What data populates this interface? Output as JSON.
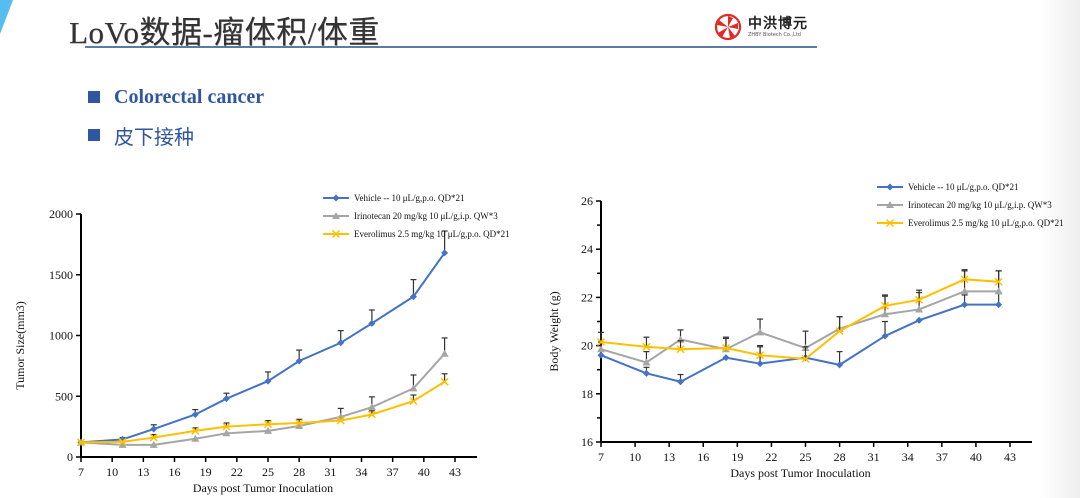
{
  "slide": {
    "title": "LoVo数据-瘤体积/体重",
    "logo": {
      "name_cn": "中洪博元",
      "name_en": "ZHBY Biotech Co.,Ltd"
    },
    "bullets": [
      {
        "text": "Colorectal cancer"
      },
      {
        "text": "皮下接种"
      }
    ],
    "colors": {
      "accent_blue": "#2f56a0",
      "title_rule": "#5a7ba6",
      "corner": "#55bdf0",
      "logo_red": "#e02a26"
    }
  },
  "chart_data": [
    {
      "type": "line",
      "title": "",
      "xlabel": "Days post Tumor Inoculation",
      "ylabel": "Tumor Size(mm3)",
      "xlim": [
        7,
        45
      ],
      "ylim": [
        0,
        2000
      ],
      "xticks": [
        7,
        10,
        13,
        16,
        19,
        22,
        25,
        28,
        31,
        34,
        37,
        40,
        43
      ],
      "yticks": [
        0,
        500,
        1000,
        1500,
        2000
      ],
      "grid": false,
      "legend_position": "top-right",
      "x": [
        7,
        11,
        14,
        18,
        21,
        25,
        28,
        32,
        35,
        39,
        42
      ],
      "series": [
        {
          "name": "Vehicle -- 10 μL/g,p.o. QD*21",
          "color": "#4472c4",
          "marker": "diamond",
          "values": [
            120,
            145,
            230,
            350,
            480,
            625,
            790,
            940,
            1100,
            1320,
            1680
          ],
          "errors": [
            0,
            15,
            35,
            40,
            45,
            75,
            90,
            100,
            110,
            140,
            180
          ]
        },
        {
          "name": "Irinotecan 20 mg/kg 10 μL/g,i.p. QW*3",
          "color": "#a5a5a5",
          "marker": "triangle",
          "values": [
            120,
            100,
            100,
            150,
            195,
            215,
            255,
            330,
            410,
            565,
            850
          ],
          "errors": [
            0,
            0,
            0,
            0,
            0,
            0,
            0,
            70,
            85,
            110,
            130
          ]
        },
        {
          "name": "Everolimus 2.5 mg/kg 10 μL/g,p.o. QD*21",
          "color": "#ffc000",
          "marker": "x",
          "values": [
            120,
            125,
            160,
            215,
            250,
            270,
            280,
            300,
            350,
            460,
            620
          ],
          "errors": [
            0,
            0,
            25,
            25,
            30,
            30,
            30,
            0,
            30,
            50,
            65
          ]
        }
      ]
    },
    {
      "type": "line",
      "title": "",
      "xlabel": "Days post Tumor Inoculation",
      "ylabel": "Body Weight (g)",
      "xlim": [
        7,
        45
      ],
      "ylim": [
        16,
        26
      ],
      "xticks": [
        7,
        10,
        13,
        16,
        19,
        22,
        25,
        28,
        31,
        34,
        37,
        40,
        43
      ],
      "yticks": [
        16,
        18,
        20,
        22,
        24,
        26
      ],
      "grid": false,
      "legend_position": "top-right",
      "x": [
        7,
        11,
        14,
        18,
        21,
        25,
        28,
        32,
        35,
        39,
        42
      ],
      "series": [
        {
          "name": "Vehicle -- 10 μL/g,p.o. QD*21",
          "color": "#4472c4",
          "marker": "diamond",
          "values": [
            19.6,
            18.85,
            18.5,
            19.5,
            19.25,
            19.5,
            19.2,
            20.4,
            21.05,
            21.7,
            21.7
          ],
          "errors": [
            0,
            0.25,
            0.3,
            0,
            0.7,
            0,
            0.55,
            0.6,
            0,
            0.4,
            0.5
          ]
        },
        {
          "name": "Irinotecan 20 mg/kg 10 μL/g,i.p. QW*3",
          "color": "#a5a5a5",
          "marker": "triangle",
          "values": [
            19.85,
            19.3,
            20.25,
            19.85,
            20.55,
            19.9,
            20.7,
            21.3,
            21.5,
            22.25,
            22.25
          ],
          "errors": [
            0.3,
            0.45,
            0.4,
            0.5,
            0.55,
            0.7,
            0.5,
            0.8,
            0.7,
            0.85,
            0.85
          ]
        },
        {
          "name": "Everolimus 2.5 mg/kg 10 μL/g,p.o. QD*21",
          "color": "#ffc000",
          "marker": "x",
          "values": [
            20.15,
            19.95,
            19.85,
            19.9,
            19.6,
            19.45,
            20.6,
            21.65,
            21.9,
            22.75,
            22.65
          ],
          "errors": [
            0.4,
            0.4,
            0.35,
            0.4,
            0.4,
            0.5,
            0.6,
            0.4,
            0.4,
            0.4,
            0.45
          ]
        }
      ]
    }
  ]
}
